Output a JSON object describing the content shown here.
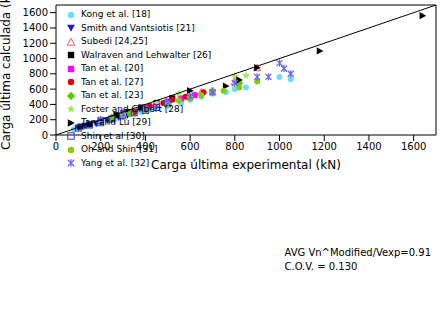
{
  "chart_data": {
    "type": "scatter",
    "x_label": "Carga última experimental (kN)",
    "y_label": "Carga última calculada (kN)",
    "xlim": [
      0,
      1700
    ],
    "ylim": [
      0,
      1700
    ],
    "xticks": [
      0,
      200,
      400,
      600,
      800,
      1000,
      1200,
      1400,
      1600
    ],
    "yticks": [
      0,
      200,
      400,
      600,
      800,
      1000,
      1200,
      1400,
      1600
    ],
    "legend": "upper left",
    "annotations": [
      "AVG Vn^Modified/Vexp=0.91",
      "C.O.V. = 0.130"
    ],
    "series": [
      {
        "name": "Kong et al. [18]",
        "color": "#66e0ff",
        "marker": "circle",
        "x": [
          80,
          100,
          130,
          150,
          180,
          200,
          230,
          260,
          300,
          350,
          380,
          420,
          450,
          500,
          560,
          600,
          650,
          700,
          760,
          800,
          850,
          1000,
          1050
        ],
        "values": [
          75,
          95,
          110,
          140,
          150,
          170,
          190,
          200,
          240,
          280,
          300,
          330,
          350,
          380,
          420,
          460,
          500,
          540,
          560,
          600,
          620,
          760,
          730
        ]
      },
      {
        "name": "Smith and Vantsiotis [21]",
        "color": "#1a1acc",
        "marker": "triangle-down",
        "x": [
          100,
          130,
          150,
          180,
          200,
          230,
          250,
          280,
          300,
          320
        ],
        "values": [
          95,
          120,
          135,
          150,
          170,
          190,
          200,
          230,
          250,
          260
        ]
      },
      {
        "name": "Subedi [24,25]",
        "color": "#ff5a5a",
        "marker": "triangle-open",
        "x": [
          300,
          400,
          500,
          650,
          800,
          900
        ],
        "values": [
          280,
          360,
          420,
          560,
          700,
          880
        ]
      },
      {
        "name": "Walraven and Lehwalter [26]",
        "color": "#000000",
        "marker": "square",
        "x": [
          110,
          150,
          200,
          270,
          320,
          380,
          450,
          520
        ],
        "values": [
          110,
          140,
          190,
          260,
          300,
          360,
          420,
          480
        ]
      },
      {
        "name": "Tan et al. [20]",
        "color": "#ff00ff",
        "marker": "square",
        "x": [
          300,
          400,
          450,
          500,
          560,
          620,
          700
        ],
        "values": [
          290,
          360,
          400,
          440,
          480,
          520,
          560
        ]
      },
      {
        "name": "Tan et al. [27]",
        "color": "#e00000",
        "marker": "circle",
        "x": [
          350,
          420,
          480,
          520,
          580,
          660
        ],
        "values": [
          300,
          380,
          420,
          460,
          500,
          560
        ]
      },
      {
        "name": "Tan et al. [23]",
        "color": "#55cc00",
        "marker": "diamond",
        "x": [
          250,
          330,
          400,
          500,
          600,
          700,
          820
        ],
        "values": [
          230,
          280,
          340,
          420,
          500,
          580,
          680
        ]
      },
      {
        "name": "Foster and Gilbert [28]",
        "color": "#99ee55",
        "marker": "star",
        "x": [
          200,
          300,
          450,
          550,
          800,
          850
        ],
        "values": [
          190,
          280,
          420,
          540,
          770,
          780
        ]
      },
      {
        "name": "Tan and Lu [29]",
        "color": "#000000",
        "marker": "triangle-right",
        "x": [
          600,
          760,
          820,
          900,
          1180,
          1640
        ],
        "values": [
          580,
          640,
          720,
          880,
          1100,
          1560
        ]
      },
      {
        "name": "Shin et al [30]",
        "color": "#3333cc",
        "marker": "square-open",
        "x": [
          100,
          150,
          200,
          250,
          300,
          350,
          400,
          450,
          500
        ],
        "values": [
          90,
          130,
          160,
          210,
          250,
          290,
          320,
          360,
          410
        ]
      },
      {
        "name": "Oh and Shin [31]",
        "color": "#88cc00",
        "marker": "circle",
        "x": [
          300,
          400,
          500,
          550,
          600,
          650,
          700,
          750,
          820,
          900
        ],
        "values": [
          260,
          320,
          400,
          450,
          480,
          520,
          560,
          580,
          620,
          700
        ]
      },
      {
        "name": "Yang et al. [32]",
        "color": "#6666ff",
        "marker": "x",
        "x": [
          200,
          300,
          400,
          500,
          600,
          700,
          800,
          900,
          950,
          1000,
          1020,
          1050
        ],
        "values": [
          200,
          270,
          340,
          420,
          500,
          560,
          680,
          760,
          760,
          940,
          870,
          800
        ]
      },
      {
        "type": "line",
        "color": "#000000",
        "x": [
          0,
          1700
        ],
        "values": [
          0,
          1700
        ]
      }
    ]
  }
}
